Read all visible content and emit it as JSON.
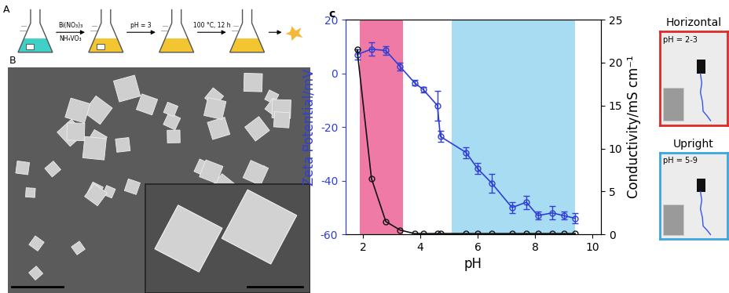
{
  "panel_a": {
    "label": "A",
    "steps": [
      {
        "above": "Bi(NO₃)₃",
        "below": "NH₄VO₃"
      },
      {
        "above": "pH = 3"
      },
      {
        "above": "100 °C, 12 h"
      }
    ]
  },
  "panel_b": {
    "label": "B"
  },
  "chart_data": {
    "type": "line",
    "panel_label": "c",
    "x_label": "pH",
    "y_label": "Zeta Potential/mV",
    "y2_label": "Conductivity/mS cm⁻¹",
    "x": [
      1.8,
      2.3,
      2.8,
      3.3,
      3.8,
      4.1,
      4.6,
      4.7,
      5.6,
      6.0,
      6.5,
      7.2,
      7.7,
      8.1,
      8.6,
      9.0,
      9.4
    ],
    "xlim": [
      1.4,
      10.3
    ],
    "xticks": [
      2,
      4,
      6,
      8,
      10
    ],
    "ylim": [
      -60,
      20
    ],
    "yticks": [
      -60,
      -40,
      -20,
      0,
      20
    ],
    "y2lim": [
      0,
      25
    ],
    "y2ticks": [
      0,
      5,
      10,
      15,
      20,
      25
    ],
    "shaded_regions": [
      {
        "from": 1.9,
        "to": 3.4,
        "color": "#f07aa6"
      },
      {
        "from": 5.1,
        "to": 9.4,
        "color": "#a8dcf2"
      }
    ],
    "series": [
      {
        "color": "#2f3fd6",
        "marker": "o",
        "line_style": "solid",
        "values": [
          7,
          9,
          8.5,
          2.5,
          -3.5,
          -6,
          -12,
          -23.5,
          -29.5,
          -35.5,
          -41,
          -50,
          -48,
          -53,
          -52,
          -53,
          -54
        ],
        "error": [
          2,
          2.5,
          1.5,
          1.5,
          1,
          1,
          5.5,
          2,
          2,
          2,
          3.5,
          2,
          2.5,
          1.5,
          2.5,
          1.5,
          2
        ]
      },
      {
        "color": "#111111",
        "marker": "o",
        "line_style": "solid",
        "axis": "y2",
        "values": [
          21.5,
          6.5,
          1.5,
          0.5,
          0.1,
          0.1,
          0.1,
          0.1,
          0.1,
          0.1,
          0.1,
          0.1,
          0.1,
          0.1,
          0.1,
          0.1,
          0.1
        ]
      }
    ]
  },
  "side_panels": [
    {
      "title": "Horizontal",
      "label": "pH = 2-3",
      "color": "#e02828"
    },
    {
      "title": "Upright",
      "label": "pH = 5-9",
      "color": "#3aa6e0"
    }
  ]
}
